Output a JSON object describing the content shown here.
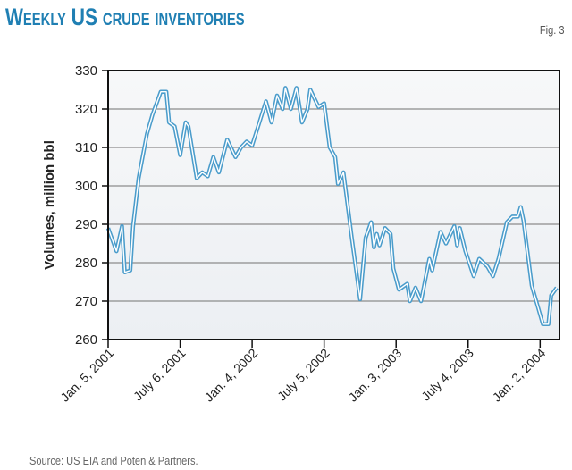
{
  "header": {
    "title": "Weekly US crude inventories",
    "figure_label": "Fig. 3"
  },
  "footer": {
    "source": "Source: US EIA and Poten & Partners."
  },
  "chart_data": {
    "type": "line",
    "title": "Weekly US crude inventories",
    "xlabel": "",
    "ylabel": "Volumes, million bbl",
    "ylim": [
      260,
      330
    ],
    "yticks": [
      260,
      270,
      280,
      290,
      300,
      310,
      320,
      330
    ],
    "xlim": [
      "2001-01-05",
      "2004-02-20"
    ],
    "xticks": [
      {
        "date": "2001-01-05",
        "label": "Jan. 5, 2001"
      },
      {
        "date": "2001-07-06",
        "label": "July 6, 2001"
      },
      {
        "date": "2002-01-04",
        "label": "Jan. 4, 2002"
      },
      {
        "date": "2002-07-05",
        "label": "July 5, 2002"
      },
      {
        "date": "2003-01-03",
        "label": "Jan. 3, 2003"
      },
      {
        "date": "2003-07-04",
        "label": "July 4, 2003"
      },
      {
        "date": "2004-01-02",
        "label": "Jan. 2, 2004"
      }
    ],
    "grid": "horizontal",
    "line_color": "#4a9ccb",
    "points": [
      [
        "2001-01-05",
        289
      ],
      [
        "2001-01-26",
        283
      ],
      [
        "2001-02-09",
        289.5
      ],
      [
        "2001-02-16",
        277.5
      ],
      [
        "2001-03-02",
        278
      ],
      [
        "2001-03-09",
        289.5
      ],
      [
        "2001-03-23",
        302
      ],
      [
        "2001-04-13",
        313.5
      ],
      [
        "2001-04-27",
        318.5
      ],
      [
        "2001-05-18",
        324.5
      ],
      [
        "2001-06-01",
        324.5
      ],
      [
        "2001-06-08",
        316.5
      ],
      [
        "2001-06-22",
        315.5
      ],
      [
        "2001-07-06",
        308
      ],
      [
        "2001-07-20",
        316.5
      ],
      [
        "2001-07-27",
        315.5
      ],
      [
        "2001-08-17",
        302
      ],
      [
        "2001-08-31",
        303.5
      ],
      [
        "2001-09-14",
        302.5
      ],
      [
        "2001-09-28",
        307.5
      ],
      [
        "2001-10-12",
        303.5
      ],
      [
        "2001-11-02",
        312
      ],
      [
        "2001-11-23",
        307.5
      ],
      [
        "2001-12-07",
        310
      ],
      [
        "2001-12-21",
        311.5
      ],
      [
        "2002-01-04",
        310.5
      ],
      [
        "2002-02-08",
        322
      ],
      [
        "2002-02-22",
        316.5
      ],
      [
        "2002-03-08",
        323.5
      ],
      [
        "2002-03-22",
        320
      ],
      [
        "2002-03-29",
        325.5
      ],
      [
        "2002-04-12",
        320
      ],
      [
        "2002-04-26",
        325.5
      ],
      [
        "2002-05-10",
        316.5
      ],
      [
        "2002-05-24",
        320
      ],
      [
        "2002-05-31",
        325
      ],
      [
        "2002-06-21",
        320.5
      ],
      [
        "2002-07-05",
        321.5
      ],
      [
        "2002-07-19",
        310
      ],
      [
        "2002-08-02",
        307.5
      ],
      [
        "2002-08-09",
        300.5
      ],
      [
        "2002-08-23",
        303.5
      ],
      [
        "2002-09-13",
        286.5
      ],
      [
        "2002-10-04",
        270.5
      ],
      [
        "2002-10-18",
        286.5
      ],
      [
        "2002-11-01",
        290.5
      ],
      [
        "2002-11-08",
        284
      ],
      [
        "2002-11-15",
        287.5
      ],
      [
        "2002-11-22",
        284.5
      ],
      [
        "2002-12-06",
        289
      ],
      [
        "2002-12-20",
        287.5
      ],
      [
        "2002-12-27",
        278.5
      ],
      [
        "2003-01-10",
        273
      ],
      [
        "2003-01-31",
        274.5
      ],
      [
        "2003-02-07",
        270
      ],
      [
        "2003-02-21",
        273.5
      ],
      [
        "2003-03-07",
        270
      ],
      [
        "2003-03-28",
        281
      ],
      [
        "2003-04-04",
        278
      ],
      [
        "2003-04-25",
        288
      ],
      [
        "2003-05-09",
        285
      ],
      [
        "2003-05-30",
        289.5
      ],
      [
        "2003-06-06",
        284.5
      ],
      [
        "2003-06-13",
        289
      ],
      [
        "2003-06-27",
        283
      ],
      [
        "2003-07-18",
        276.5
      ],
      [
        "2003-08-01",
        281
      ],
      [
        "2003-08-22",
        279
      ],
      [
        "2003-09-05",
        276.5
      ],
      [
        "2003-09-19",
        281
      ],
      [
        "2003-10-10",
        290.5
      ],
      [
        "2003-10-24",
        292
      ],
      [
        "2003-11-07",
        292
      ],
      [
        "2003-11-14",
        294.5
      ],
      [
        "2003-11-21",
        291
      ],
      [
        "2003-12-12",
        274
      ],
      [
        "2004-01-09",
        264
      ],
      [
        "2004-01-23",
        264
      ],
      [
        "2004-01-30",
        271.5
      ],
      [
        "2004-02-13",
        273.5
      ]
    ]
  }
}
